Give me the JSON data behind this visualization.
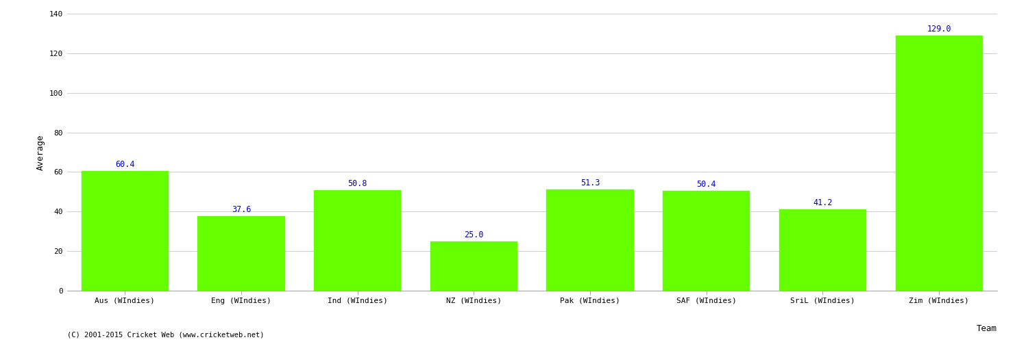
{
  "categories": [
    "Aus (WIndies)",
    "Eng (WIndies)",
    "Ind (WIndies)",
    "NZ (WIndies)",
    "Pak (WIndies)",
    "SAF (WIndies)",
    "SriL (WIndies)",
    "Zim (WIndies)"
  ],
  "values": [
    60.4,
    37.6,
    50.8,
    25.0,
    51.3,
    50.4,
    41.2,
    129.0
  ],
  "bar_color": "#66ff00",
  "bar_edge_color": "#66ff00",
  "label_color": "#0000cc",
  "xlabel": "Team",
  "ylabel": "Average",
  "ylim": [
    0,
    140
  ],
  "yticks": [
    0,
    20,
    40,
    60,
    80,
    100,
    120,
    140
  ],
  "label_fontsize": 8.5,
  "axis_label_fontsize": 9,
  "tick_fontsize": 8,
  "footnote": "(C) 2001-2015 Cricket Web (www.cricketweb.net)",
  "background_color": "#ffffff",
  "grid_color": "#d0d0d0",
  "bar_width": 0.75
}
